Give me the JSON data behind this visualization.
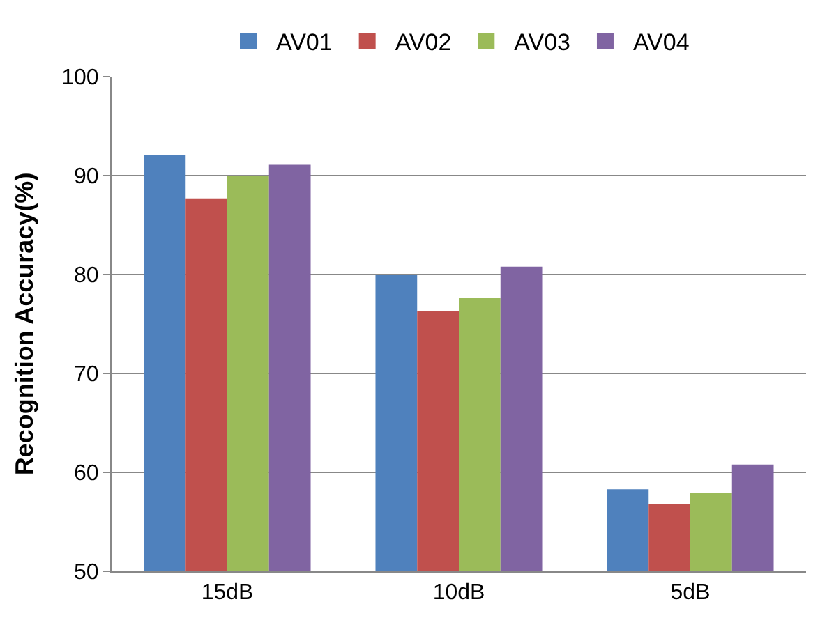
{
  "chart_data": {
    "type": "bar",
    "ylabel": "Recognition Accuracy(%)",
    "categories": [
      "15dB",
      "10dB",
      "5dB"
    ],
    "series": [
      {
        "name": "AV01",
        "color": "#4f81bd",
        "values": [
          92.1,
          80.0,
          58.3
        ]
      },
      {
        "name": "AV02",
        "color": "#c0504d",
        "values": [
          87.7,
          76.3,
          56.8
        ]
      },
      {
        "name": "AV03",
        "color": "#9bbb59",
        "values": [
          90.0,
          77.6,
          57.9
        ]
      },
      {
        "name": "AV04",
        "color": "#8064a2",
        "values": [
          91.1,
          80.8,
          60.8
        ]
      }
    ],
    "ylim": [
      50,
      100
    ],
    "yticks": [
      50,
      60,
      70,
      80,
      90,
      100
    ],
    "grid": "y",
    "legend": "top"
  }
}
